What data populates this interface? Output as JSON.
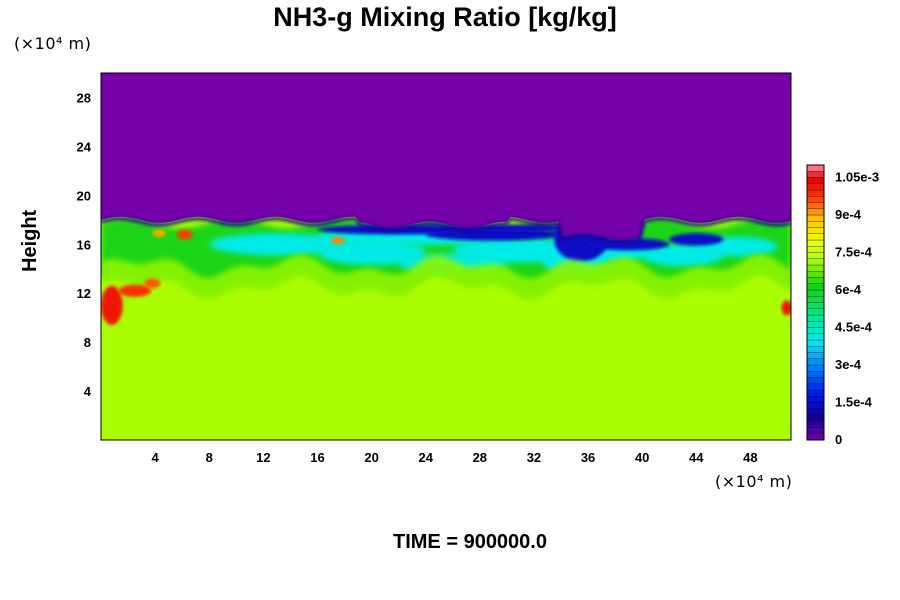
{
  "chart_data": {
    "type": "heatmap",
    "title": "NH3-g Mixing Ratio [kg/kg]",
    "xlabel": "",
    "ylabel": "Height",
    "x_unit": "(×10⁴ m)",
    "y_unit": "(×10⁴ m)",
    "x_range": [
      0,
      51
    ],
    "y_range": [
      0,
      30
    ],
    "x_ticks": [
      4,
      8,
      12,
      16,
      20,
      24,
      28,
      32,
      36,
      40,
      44,
      48
    ],
    "y_ticks": [
      4,
      8,
      12,
      16,
      20,
      24,
      28
    ],
    "value_range": [
      0,
      0.0011
    ],
    "colorbar_labels": [
      {
        "value": 0,
        "label": "0"
      },
      {
        "value": 0.00015,
        "label": "1.5e-4"
      },
      {
        "value": 0.0003,
        "label": "3e-4"
      },
      {
        "value": 0.00045,
        "label": "4.5e-4"
      },
      {
        "value": 0.0006,
        "label": "6e-4"
      },
      {
        "value": 0.00075,
        "label": "7.5e-4"
      },
      {
        "value": 0.0009,
        "label": "9e-4"
      },
      {
        "value": 0.00105,
        "label": "1.05e-3"
      }
    ],
    "regions": [
      {
        "region": "upper layer",
        "y_from": 18,
        "y_to": 30,
        "value": 0.0
      },
      {
        "region": "lower layer",
        "y_from": 0,
        "y_to": 14,
        "value": 0.00072
      },
      {
        "region": "mixing layer",
        "y_from": 14,
        "y_to": 18,
        "value_min": 0.0001,
        "value_max": 0.00105
      }
    ],
    "grid": false,
    "legend": "right colorbar"
  },
  "footer": {
    "time_label": "TIME = 900000.0"
  },
  "colors": {
    "top_layer": "#7300a8",
    "bottom_layer": "#dcff00"
  }
}
